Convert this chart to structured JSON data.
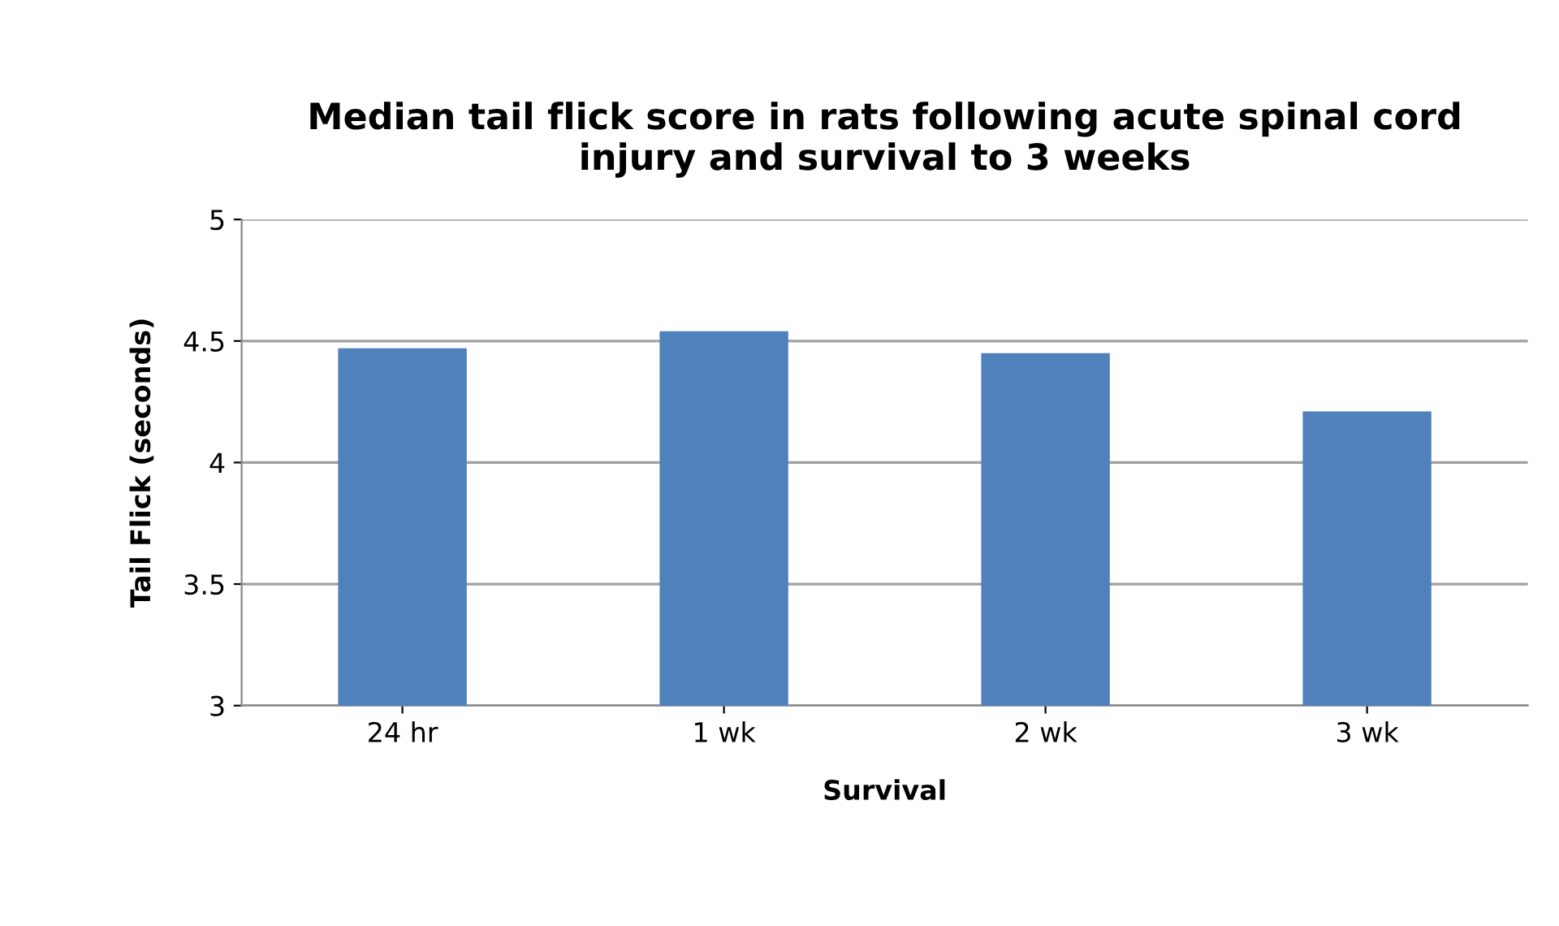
{
  "chart_data": {
    "type": "bar",
    "title": "Median tail flick score in rats following acute spinal cord\ninjury and survival to 3 weeks",
    "xlabel": "Survival",
    "ylabel": "Tail Flick (seconds)",
    "categories": [
      "24 hr",
      "1 wk",
      "2 wk",
      "3 wk"
    ],
    "values": [
      4.47,
      4.54,
      4.45,
      4.21
    ],
    "color": "#4f81bd",
    "ylim": [
      3,
      5
    ],
    "yticks": [
      3,
      3.5,
      4,
      4.5,
      5
    ],
    "grid": "y",
    "legend": false
  }
}
